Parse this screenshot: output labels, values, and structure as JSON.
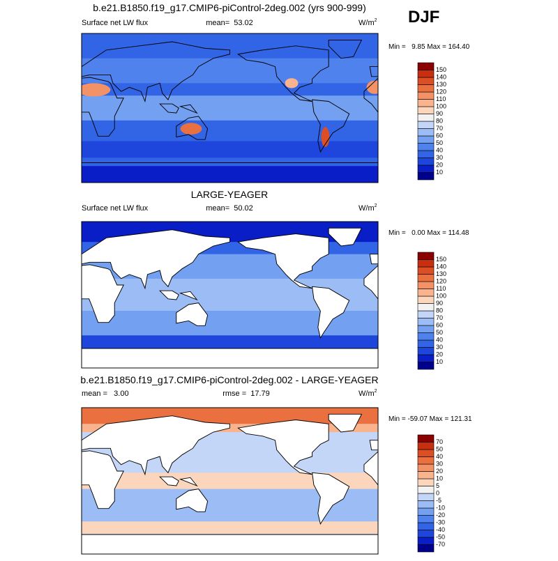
{
  "season": "DJF",
  "panels": [
    {
      "title": "b.e21.B1850.f19_g17.CMIP6-piControl-2deg.002 (yrs 900-999)",
      "left": "Surface net LW flux",
      "center": "mean=  53.02",
      "units": "W/m",
      "units_sup": "2",
      "minmax": "Min =   9.85 Max = 164.40",
      "colorbar": {
        "levels": [
          10,
          20,
          30,
          40,
          50,
          60,
          70,
          80,
          90,
          100,
          110,
          120,
          130,
          140,
          150
        ],
        "colors": [
          "#00008b",
          "#0a1ec8",
          "#1e46dc",
          "#3264e6",
          "#5082ee",
          "#73a0f0",
          "#9bbcf4",
          "#c3d6f8",
          "#f2f2f2",
          "#fcd6bc",
          "#f9b48e",
          "#f29266",
          "#ea7040",
          "#dc4e23",
          "#c82e10",
          "#8b0000"
        ]
      }
    },
    {
      "title": "LARGE-YEAGER",
      "left": "Surface net LW flux",
      "center": "mean=  50.02",
      "units": "W/m",
      "units_sup": "2",
      "minmax": "Min =   0.00 Max = 114.48",
      "colorbar": {
        "levels": [
          10,
          20,
          30,
          40,
          50,
          60,
          70,
          80,
          90,
          100,
          110,
          120,
          130,
          140,
          150
        ],
        "colors": [
          "#00008b",
          "#0a1ec8",
          "#1e46dc",
          "#3264e6",
          "#5082ee",
          "#73a0f0",
          "#9bbcf4",
          "#c3d6f8",
          "#f2f2f2",
          "#fcd6bc",
          "#f9b48e",
          "#f29266",
          "#ea7040",
          "#dc4e23",
          "#c82e10",
          "#8b0000"
        ]
      }
    },
    {
      "title": "b.e21.B1850.f19_g17.CMIP6-piControl-2deg.002 - LARGE-YEAGER",
      "left": "mean =   3.00",
      "center": "rmse =  17.79",
      "units": "W/m",
      "units_sup": "2",
      "minmax": "Min = -59.07 Max = 121.31",
      "colorbar": {
        "levels": [
          -70,
          -50,
          -40,
          -30,
          -20,
          -10,
          -5,
          0,
          5,
          10,
          20,
          30,
          40,
          50,
          70
        ],
        "colors": [
          "#00008b",
          "#0a1ec8",
          "#1e46dc",
          "#3264e6",
          "#5082ee",
          "#73a0f0",
          "#9bbcf4",
          "#c3d6f8",
          "#f2f2f2",
          "#fcd6bc",
          "#f9b48e",
          "#f29266",
          "#ea7040",
          "#dc4e23",
          "#c82e10",
          "#8b0000"
        ]
      }
    }
  ]
}
